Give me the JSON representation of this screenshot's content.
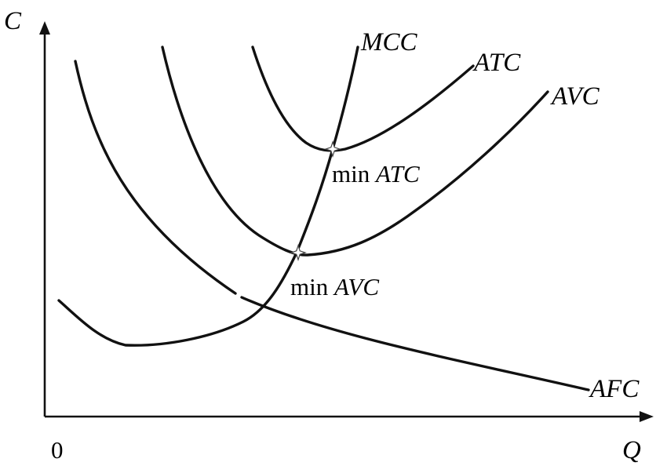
{
  "axes": {
    "y_label": "C",
    "x_label": "Q",
    "origin_label": "0"
  },
  "curves": [
    {
      "id": "mcc",
      "label": "MCC"
    },
    {
      "id": "atc",
      "label": "ATC"
    },
    {
      "id": "avc",
      "label": "AVC"
    },
    {
      "id": "afc",
      "label": "AFC"
    }
  ],
  "annotations": {
    "min_atc": {
      "prefix": "min ",
      "name": "ATC"
    },
    "min_avc": {
      "prefix": "min ",
      "name": "AVC"
    }
  }
}
